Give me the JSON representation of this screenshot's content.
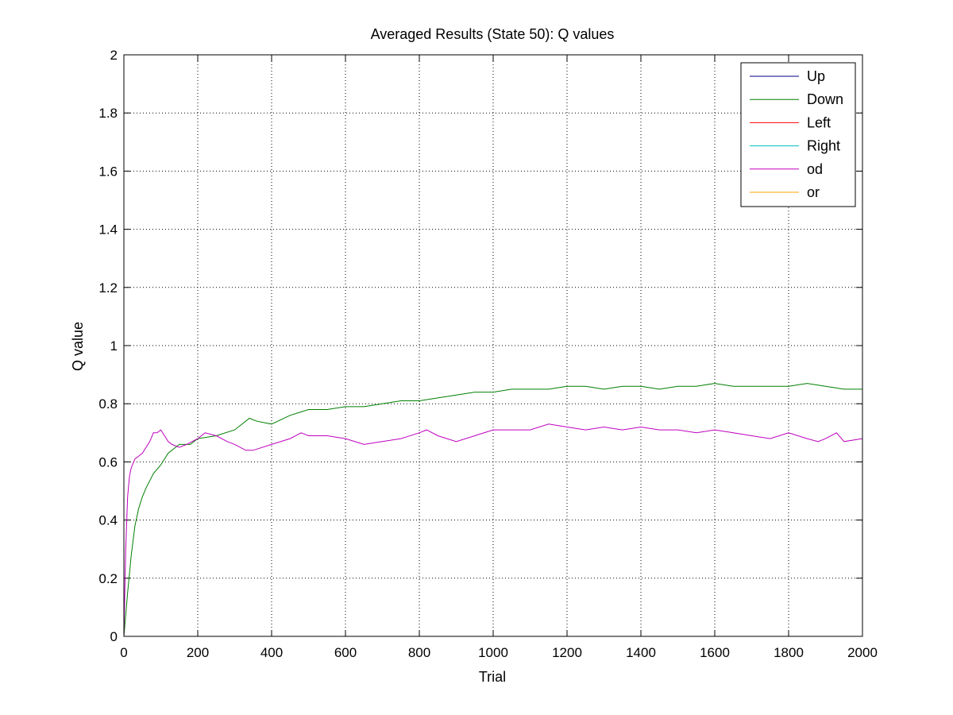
{
  "chart_data": {
    "type": "line",
    "title": "Averaged Results (State 50): Q values",
    "xlabel": "Trial",
    "ylabel": "Q value",
    "xlim": [
      0,
      2000
    ],
    "ylim": [
      0,
      2
    ],
    "xticks": [
      0,
      200,
      400,
      600,
      800,
      1000,
      1200,
      1400,
      1600,
      1800,
      2000
    ],
    "xtick_labels": [
      "0",
      "200",
      "400",
      "600",
      "800",
      "1000",
      "1200",
      "1400",
      "1600",
      "1800",
      "2000"
    ],
    "yticks": [
      0,
      0.2,
      0.4,
      0.6,
      0.8,
      1,
      1.2,
      1.4,
      1.6,
      1.8,
      2
    ],
    "ytick_labels": [
      "0",
      "0.2",
      "0.4",
      "0.6",
      "0.8",
      "1",
      "1.2",
      "1.4",
      "1.6",
      "1.8",
      "2"
    ],
    "grid": true,
    "legend_position": "top-right",
    "series": [
      {
        "name": "Up",
        "color": "#00008b",
        "x": [
          0,
          2000
        ],
        "y": [
          0,
          0
        ]
      },
      {
        "name": "Down",
        "color": "#007f00",
        "x": [
          0,
          10,
          20,
          30,
          40,
          50,
          60,
          80,
          100,
          120,
          150,
          180,
          200,
          250,
          300,
          340,
          360,
          400,
          450,
          500,
          550,
          600,
          650,
          700,
          750,
          800,
          850,
          900,
          950,
          1000,
          1050,
          1100,
          1150,
          1200,
          1250,
          1300,
          1350,
          1400,
          1450,
          1500,
          1550,
          1600,
          1650,
          1700,
          1750,
          1800,
          1850,
          1900,
          1950,
          2000
        ],
        "y": [
          0,
          0.15,
          0.28,
          0.38,
          0.44,
          0.48,
          0.51,
          0.56,
          0.59,
          0.63,
          0.66,
          0.66,
          0.68,
          0.69,
          0.71,
          0.75,
          0.74,
          0.73,
          0.76,
          0.78,
          0.78,
          0.79,
          0.79,
          0.8,
          0.81,
          0.81,
          0.82,
          0.83,
          0.84,
          0.84,
          0.85,
          0.85,
          0.85,
          0.86,
          0.86,
          0.85,
          0.86,
          0.86,
          0.85,
          0.86,
          0.86,
          0.87,
          0.86,
          0.86,
          0.86,
          0.86,
          0.87,
          0.86,
          0.85,
          0.85
        ]
      },
      {
        "name": "Left",
        "color": "#ff0000",
        "x": [
          0,
          2000
        ],
        "y": [
          0,
          0
        ]
      },
      {
        "name": "Right",
        "color": "#00bfbf",
        "x": [
          0,
          2000
        ],
        "y": [
          0,
          0
        ]
      },
      {
        "name": "od",
        "color": "#bf00bf",
        "x": [
          0,
          5,
          10,
          15,
          20,
          30,
          40,
          50,
          60,
          70,
          80,
          90,
          100,
          110,
          120,
          130,
          150,
          170,
          200,
          220,
          250,
          280,
          300,
          330,
          350,
          400,
          450,
          480,
          500,
          550,
          600,
          650,
          700,
          750,
          800,
          820,
          850,
          900,
          950,
          1000,
          1050,
          1100,
          1150,
          1200,
          1250,
          1300,
          1350,
          1400,
          1450,
          1500,
          1550,
          1600,
          1650,
          1700,
          1750,
          1800,
          1850,
          1880,
          1900,
          1930,
          1950,
          2000
        ],
        "y": [
          0,
          0.3,
          0.48,
          0.55,
          0.58,
          0.61,
          0.62,
          0.63,
          0.65,
          0.67,
          0.7,
          0.7,
          0.71,
          0.69,
          0.67,
          0.66,
          0.65,
          0.66,
          0.68,
          0.7,
          0.69,
          0.67,
          0.66,
          0.64,
          0.64,
          0.66,
          0.68,
          0.7,
          0.69,
          0.69,
          0.68,
          0.66,
          0.67,
          0.68,
          0.7,
          0.71,
          0.69,
          0.67,
          0.69,
          0.71,
          0.71,
          0.71,
          0.73,
          0.72,
          0.71,
          0.72,
          0.71,
          0.72,
          0.71,
          0.71,
          0.7,
          0.71,
          0.7,
          0.69,
          0.68,
          0.7,
          0.68,
          0.67,
          0.68,
          0.7,
          0.67,
          0.68
        ]
      },
      {
        "name": "or",
        "color": "#ffa500",
        "x": [
          0,
          2000
        ],
        "y": [
          0,
          0
        ]
      }
    ]
  }
}
